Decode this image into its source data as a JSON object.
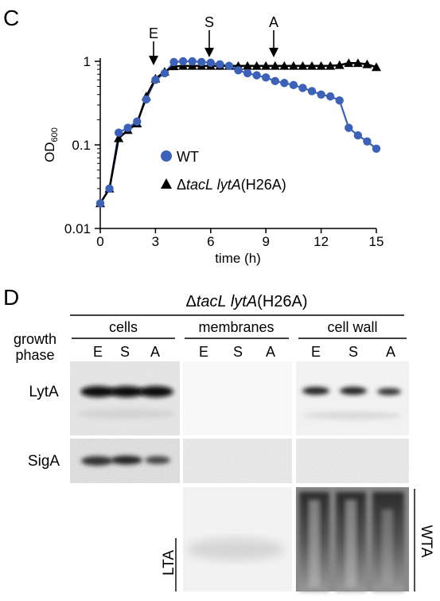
{
  "panel_c": {
    "label": "C",
    "arrows": [
      {
        "label": "E",
        "x_h": 3.0
      },
      {
        "label": "S",
        "x_h": 6.0
      },
      {
        "label": "A",
        "x_h": 9.5
      }
    ],
    "legend": {
      "wt": "WT",
      "mut_prefix": "Δ",
      "mut_italic": "tacL lytA",
      "mut_suffix": "(H26A)"
    },
    "axis": {
      "xlabel": "time (h)",
      "ylabel_main": "OD",
      "ylabel_sub": "600"
    }
  },
  "chart_data": {
    "type": "line",
    "xlabel": "time (h)",
    "ylabel": "OD600",
    "xlim": [
      0,
      15
    ],
    "ylim": [
      0.01,
      1
    ],
    "yscale": "log",
    "xticks": [
      0,
      3,
      6,
      9,
      12,
      15
    ],
    "xtick_labels": [
      "0",
      "3",
      "6",
      "9",
      "12",
      "15"
    ],
    "yticks": [
      0.01,
      0.1,
      1
    ],
    "ytick_labels": [
      "0.01",
      "0.1",
      "1"
    ],
    "grid": false,
    "legend_position": "lower-center",
    "series": [
      {
        "name": "WT",
        "color": "#3b62b8",
        "marker": "circle",
        "x": [
          0,
          0.5,
          1,
          1.5,
          2,
          2.5,
          3,
          3.5,
          4,
          4.5,
          5,
          5.5,
          6,
          6.5,
          7,
          7.5,
          8,
          8.5,
          9,
          9.5,
          10,
          10.5,
          11,
          11.5,
          12,
          12.5,
          13,
          13.5,
          14,
          14.5,
          15
        ],
        "y": [
          0.02,
          0.03,
          0.14,
          0.16,
          0.19,
          0.35,
          0.6,
          0.72,
          0.98,
          1.0,
          1.0,
          0.98,
          0.96,
          0.92,
          0.88,
          0.78,
          0.72,
          0.68,
          0.64,
          0.58,
          0.55,
          0.52,
          0.48,
          0.44,
          0.4,
          0.38,
          0.34,
          0.16,
          0.13,
          0.11,
          0.09
        ]
      },
      {
        "name": "ΔtacL lytA(H26A)",
        "color": "#000000",
        "marker": "triangle",
        "x": [
          0,
          0.5,
          1,
          1.5,
          2,
          2.5,
          3,
          3.5,
          4,
          4.5,
          5,
          5.5,
          6,
          6.5,
          7,
          7.5,
          8,
          8.5,
          9,
          9.5,
          10,
          10.5,
          11,
          11.5,
          12,
          12.5,
          13,
          13.5,
          14,
          14.5,
          15
        ],
        "y": [
          0.02,
          0.03,
          0.12,
          0.15,
          0.18,
          0.38,
          0.62,
          0.75,
          0.87,
          0.88,
          0.88,
          0.88,
          0.88,
          0.88,
          0.88,
          0.88,
          0.88,
          0.88,
          0.88,
          0.88,
          0.88,
          0.88,
          0.88,
          0.88,
          0.88,
          0.88,
          0.9,
          0.95,
          0.95,
          0.92,
          0.85
        ]
      }
    ]
  },
  "panel_d": {
    "label": "D",
    "title_prefix": "Δ",
    "title_italic": "tacL lytA",
    "title_suffix": "(H26A)",
    "growth_phase_line1": "growth",
    "growth_phase_line2": "phase",
    "groups": [
      "cells",
      "membranes",
      "cell wall"
    ],
    "phases": [
      "E",
      "S",
      "A"
    ],
    "rows": [
      "LytA",
      "SigA"
    ],
    "side_labels": {
      "left": "LTA",
      "right": "WTA"
    }
  }
}
